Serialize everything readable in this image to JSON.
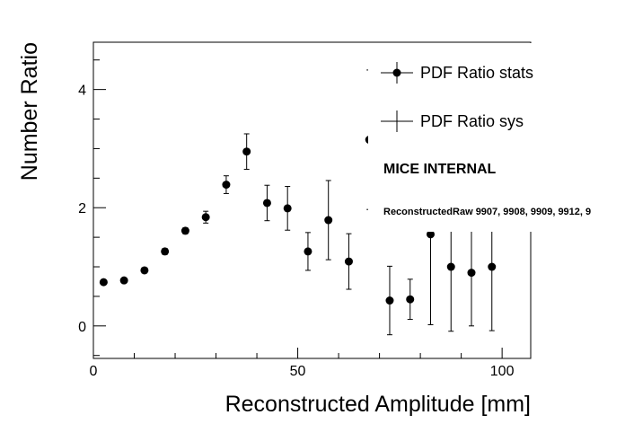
{
  "chart_data": {
    "type": "scatter",
    "xlabel": "Reconstructed Amplitude [mm]",
    "ylabel": "Number Ratio",
    "xlim": [
      0,
      107
    ],
    "ylim": [
      -0.55,
      4.8
    ],
    "xticks": [
      0,
      50,
      100
    ],
    "yticks": [
      0,
      2,
      4
    ],
    "grid": false,
    "legend_position": "top-right",
    "series": [
      {
        "name": "PDF Ratio stats",
        "x": [
          2.5,
          7.5,
          12.5,
          17.5,
          22.5,
          27.5,
          32.5,
          37.5,
          42.5,
          47.5,
          52.5,
          57.5,
          62.5,
          67.5,
          72.5,
          77.5,
          82.5,
          87.5,
          92.5,
          97.5
        ],
        "y": [
          0.74,
          0.77,
          0.94,
          1.26,
          1.61,
          1.84,
          2.39,
          2.95,
          2.08,
          1.99,
          1.26,
          1.79,
          1.09,
          3.15,
          0.43,
          0.45,
          1.55,
          1.0,
          0.9,
          1.0
        ],
        "err_low": [
          0.02,
          0.02,
          0.04,
          0.05,
          0.05,
          0.1,
          0.15,
          0.3,
          0.3,
          0.37,
          0.32,
          0.67,
          0.47,
          1.18,
          0.58,
          0.34,
          1.53,
          1.09,
          0.9,
          1.08
        ],
        "err_high": [
          0.02,
          0.02,
          0.04,
          0.05,
          0.05,
          0.1,
          0.15,
          0.3,
          0.3,
          0.37,
          0.32,
          0.67,
          0.47,
          1.18,
          0.58,
          0.34,
          1.53,
          1.09,
          0.9,
          1.08
        ]
      },
      {
        "name": "PDF Ratio sys",
        "x": [],
        "y": []
      }
    ],
    "annotations": [
      "MICE INTERNAL",
      "ReconstructedRaw 9907, 9908, 9909, 9912, 9"
    ]
  }
}
